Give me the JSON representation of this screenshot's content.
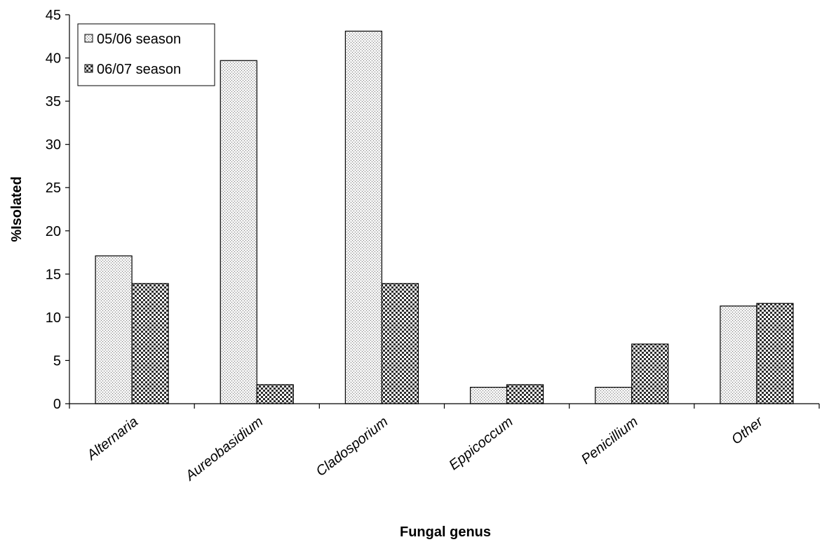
{
  "chart_data": {
    "type": "bar",
    "title": "",
    "xlabel": "Fungal genus",
    "ylabel": "%Isolated",
    "ylim": [
      0,
      45
    ],
    "yticks": [
      0,
      5,
      10,
      15,
      20,
      25,
      30,
      35,
      40,
      45
    ],
    "categories": [
      "Alternaria",
      "Aureobasidium",
      "Cladosporium",
      "Eppicoccum",
      "Penicillium",
      "Other"
    ],
    "series": [
      {
        "name": "05/06 season",
        "values": [
          17.1,
          39.7,
          43.1,
          1.9,
          1.9,
          11.3
        ],
        "pattern": "fine-dots"
      },
      {
        "name": "06/07 season",
        "values": [
          13.9,
          2.2,
          13.9,
          2.2,
          6.9,
          11.6
        ],
        "pattern": "checker"
      }
    ],
    "legend": {
      "placement": "top-left"
    },
    "grid": false
  }
}
